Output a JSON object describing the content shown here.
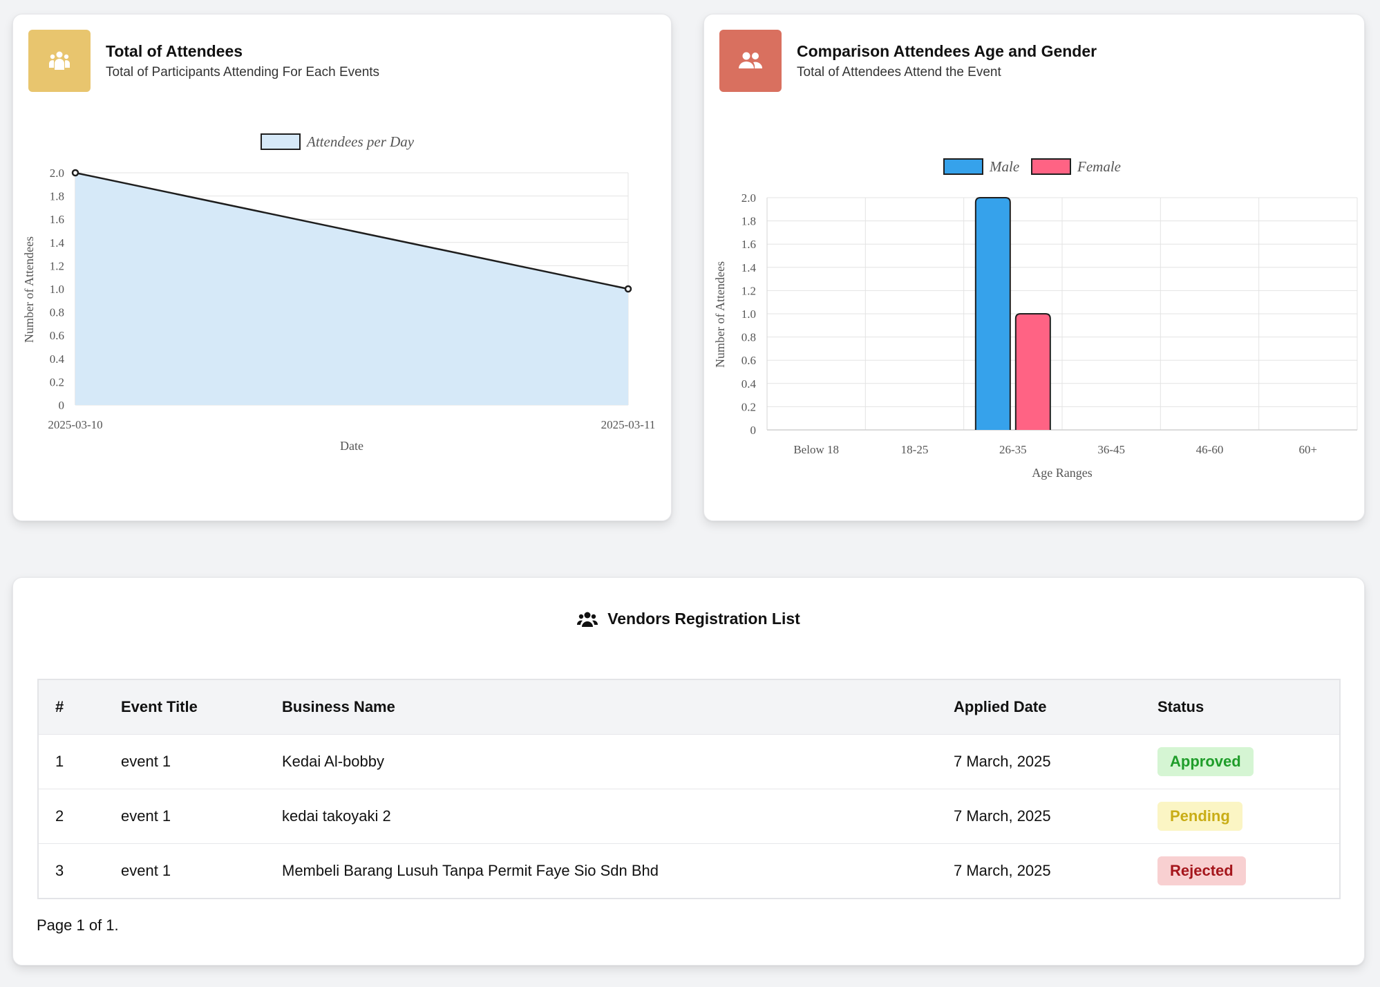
{
  "attendees_card": {
    "title": "Total of Attendees",
    "subtitle": "Total of Participants Attending For Each Events",
    "icon": "users-icon",
    "icon_bg": "#e8c56e"
  },
  "gender_card": {
    "title": "Comparison Attendees Age and Gender",
    "subtitle": "Total of Attendees Attend the Event",
    "icon": "user-group-icon",
    "icon_bg": "#d9705f"
  },
  "chart_data": [
    {
      "type": "area",
      "legend": [
        "Attendees per Day"
      ],
      "legend_position": "top",
      "x": [
        "2025-03-10",
        "2025-03-11"
      ],
      "series": [
        {
          "name": "Attendees per Day",
          "values": [
            2,
            1
          ],
          "color": "#d6e9f8",
          "line_color": "#1e1e1e"
        }
      ],
      "xlabel": "Date",
      "ylabel": "Number of Attendees",
      "ylim": [
        0,
        2
      ],
      "yticks": [
        "0",
        "0.2",
        "0.4",
        "0.6",
        "0.8",
        "1.0",
        "1.2",
        "1.4",
        "1.6",
        "1.8",
        "2.0"
      ],
      "grid": true
    },
    {
      "type": "bar",
      "legend": [
        "Male",
        "Female"
      ],
      "legend_position": "top",
      "categories": [
        "Below 18",
        "18-25",
        "26-35",
        "36-45",
        "46-60",
        "60+"
      ],
      "series": [
        {
          "name": "Male",
          "values": [
            0,
            0,
            2,
            0,
            0,
            0
          ],
          "color": "#36a2eb"
        },
        {
          "name": "Female",
          "values": [
            0,
            0,
            1,
            0,
            0,
            0
          ],
          "color": "#ff6384"
        }
      ],
      "xlabel": "Age Ranges",
      "ylabel": "Number of Attendees",
      "ylim": [
        0,
        2
      ],
      "yticks": [
        "0",
        "0.2",
        "0.4",
        "0.6",
        "0.8",
        "1.0",
        "1.2",
        "1.4",
        "1.6",
        "1.8",
        "2.0"
      ],
      "grid": true
    }
  ],
  "vendors": {
    "title": "Vendors Registration List",
    "icon": "user-group-icon",
    "columns": [
      "#",
      "Event Title",
      "Business Name",
      "Applied Date",
      "Status"
    ],
    "rows": [
      {
        "num": "1",
        "event": "event 1",
        "business": "Kedai Al-bobby",
        "date": "7 March, 2025",
        "status": "Approved",
        "status_fg": "#1f9d2a",
        "status_bg": "#d5f5d3"
      },
      {
        "num": "2",
        "event": "event 1",
        "business": "kedai takoyaki 2",
        "date": "7 March, 2025",
        "status": "Pending",
        "status_fg": "#c9ad16",
        "status_bg": "#fbf5c4"
      },
      {
        "num": "3",
        "event": "event 1",
        "business": "Membeli Barang Lusuh Tanpa Permit Faye Sio Sdn Bhd",
        "date": "7 March, 2025",
        "status": "Rejected",
        "status_fg": "#a5161c",
        "status_bg": "#f8d0d1"
      }
    ],
    "pager": "Page 1 of 1."
  }
}
